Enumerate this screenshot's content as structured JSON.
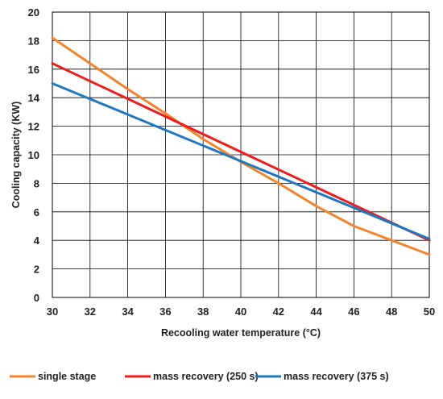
{
  "chart_data": {
    "type": "line",
    "title": "",
    "xlabel": "Recooling water temperature (°C)",
    "ylabel": "Cooling capacity (KW)",
    "xlim": [
      30,
      50
    ],
    "ylim": [
      0,
      20
    ],
    "x_ticks": [
      30,
      32,
      34,
      36,
      38,
      40,
      42,
      44,
      46,
      48,
      50
    ],
    "y_ticks": [
      0,
      2,
      4,
      6,
      8,
      10,
      12,
      14,
      16,
      18,
      20
    ],
    "grid": true,
    "legend_position": "bottom",
    "series": [
      {
        "name": "single stage",
        "color": "#F4842B",
        "x": [
          30,
          32,
          34,
          36,
          38,
          40,
          42,
          44,
          46,
          48,
          50
        ],
        "y": [
          18.2,
          16.4,
          14.6,
          12.9,
          11.1,
          9.5,
          8.0,
          6.4,
          5.0,
          4.0,
          3.0
        ]
      },
      {
        "name": "mass recovery (250 s)",
        "color": "#EE1C1C",
        "x": [
          30,
          50
        ],
        "y": [
          16.4,
          4.0
        ]
      },
      {
        "name": "mass recovery (375 s)",
        "color": "#1F77C4",
        "x": [
          30,
          50
        ],
        "y": [
          15.0,
          4.1
        ]
      }
    ]
  }
}
